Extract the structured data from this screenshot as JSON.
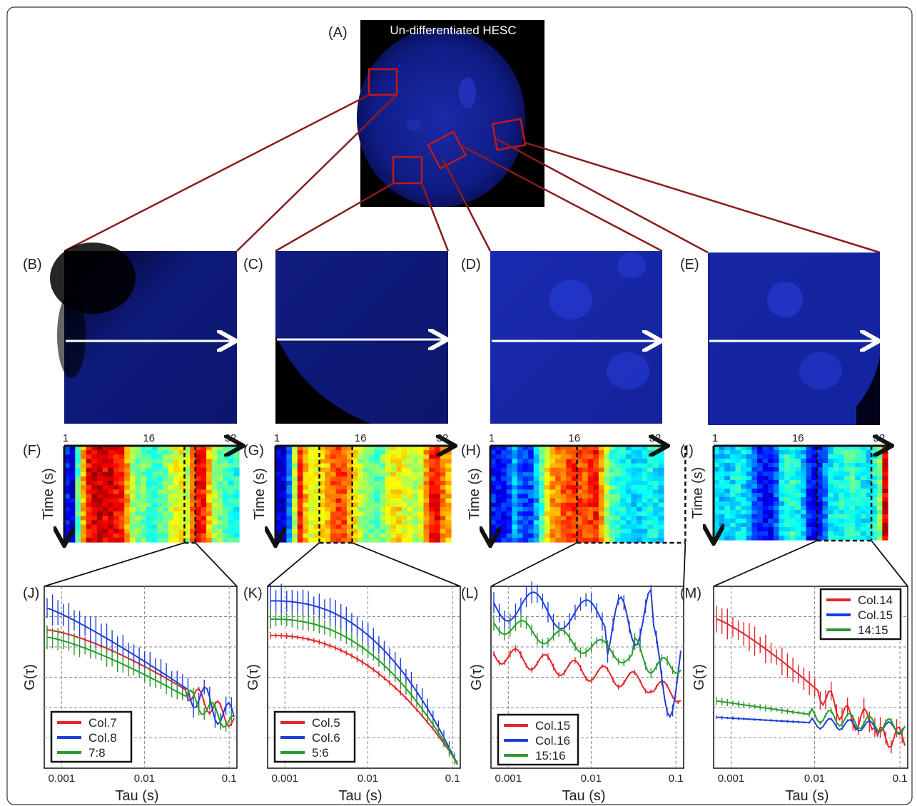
{
  "main_image": {
    "label": "(A)",
    "title": "Un-differentiated HESC"
  },
  "zoom_panels": [
    {
      "label": "(B)"
    },
    {
      "label": "(C)"
    },
    {
      "label": "(D)"
    },
    {
      "label": "(E)"
    }
  ],
  "kymograph_panels": [
    {
      "label": "(F)",
      "ticks": [
        "1",
        "16",
        "32"
      ],
      "ylabel": "Time (s)"
    },
    {
      "label": "(G)",
      "ticks": [
        "1",
        "16",
        "32"
      ],
      "ylabel": "Time (s)"
    },
    {
      "label": "(H)",
      "ticks": [
        "1",
        "16",
        "32"
      ],
      "ylabel": "Time (s)"
    },
    {
      "label": "(I)",
      "ticks": [
        "1",
        "16",
        "32"
      ],
      "ylabel": "Time (s)"
    }
  ],
  "correlation_panels": [
    {
      "label": "(J)",
      "ylabel": "G(τ)",
      "xlabel": "Tau (s)",
      "xticks": [
        "0.001",
        "0.01",
        "0.1"
      ],
      "legend": [
        "Col.7",
        "Col.8",
        "7:8"
      ]
    },
    {
      "label": "(K)",
      "ylabel": "G(τ)",
      "xlabel": "Tau (s)",
      "xticks": [
        "0.001",
        "0.01",
        "0.1"
      ],
      "legend": [
        "Col.5",
        "Col.6",
        "5:6"
      ]
    },
    {
      "label": "(L)",
      "ylabel": "G(τ)",
      "xlabel": "Tau (s)",
      "xticks": [
        "0.001",
        "0.01",
        "0.1"
      ],
      "legend": [
        "Col.15",
        "Col.16",
        "15:16"
      ]
    },
    {
      "label": "(M)",
      "ylabel": "G(τ)",
      "xlabel": "Tau (s)",
      "xticks": [
        "0.001",
        "0.01",
        "0.1"
      ],
      "legend": [
        "Col.14",
        "Col.15",
        "14:15"
      ]
    }
  ],
  "colors": {
    "red": "#e5242a",
    "blue": "#1f3fd8",
    "green": "#2c9a2e",
    "connector": "#8a1c1c"
  }
}
